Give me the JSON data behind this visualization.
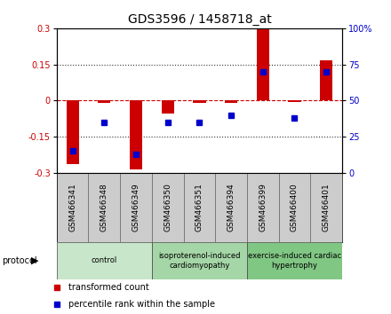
{
  "title": "GDS3596 / 1458718_at",
  "samples": [
    "GSM466341",
    "GSM466348",
    "GSM466349",
    "GSM466350",
    "GSM466351",
    "GSM466394",
    "GSM466399",
    "GSM466400",
    "GSM466401"
  ],
  "transformed_counts": [
    -0.265,
    -0.01,
    -0.285,
    -0.055,
    -0.01,
    -0.01,
    0.295,
    -0.005,
    0.165
  ],
  "percentile_ranks": [
    15,
    35,
    13,
    35,
    35,
    40,
    70,
    38,
    70
  ],
  "group_specs": [
    {
      "start": 0,
      "end": 2,
      "label": "control",
      "color": "#c8e6c9"
    },
    {
      "start": 3,
      "end": 5,
      "label": "isoproterenol-induced\ncardiomyopathy",
      "color": "#a5d6a7"
    },
    {
      "start": 6,
      "end": 8,
      "label": "exercise-induced cardiac\nhypertrophy",
      "color": "#81c784"
    }
  ],
  "ylim_left": [
    -0.3,
    0.3
  ],
  "ylim_right": [
    0,
    100
  ],
  "yticks_left": [
    -0.3,
    -0.15,
    0,
    0.15,
    0.3
  ],
  "yticks_right": [
    0,
    25,
    50,
    75,
    100
  ],
  "ytick_labels_left": [
    "-0.3",
    "-0.15",
    "0",
    "0.15",
    "0.3"
  ],
  "ytick_labels_right": [
    "0",
    "25",
    "50",
    "75",
    "100%"
  ],
  "bar_color": "#cc0000",
  "dot_color": "#0000cc",
  "zero_line_color": "#cc0000",
  "dotted_line_color": "#333333",
  "bg_color": "#ffffff",
  "sample_cell_color": "#cccccc",
  "label_fontsize": 7,
  "title_fontsize": 10,
  "tick_label_color_left": "#cc0000",
  "tick_label_color_right": "#0000cc",
  "legend_items": [
    {
      "label": "transformed count",
      "color": "#cc0000"
    },
    {
      "label": "percentile rank within the sample",
      "color": "#0000cc"
    }
  ],
  "protocol_label": "protocol"
}
